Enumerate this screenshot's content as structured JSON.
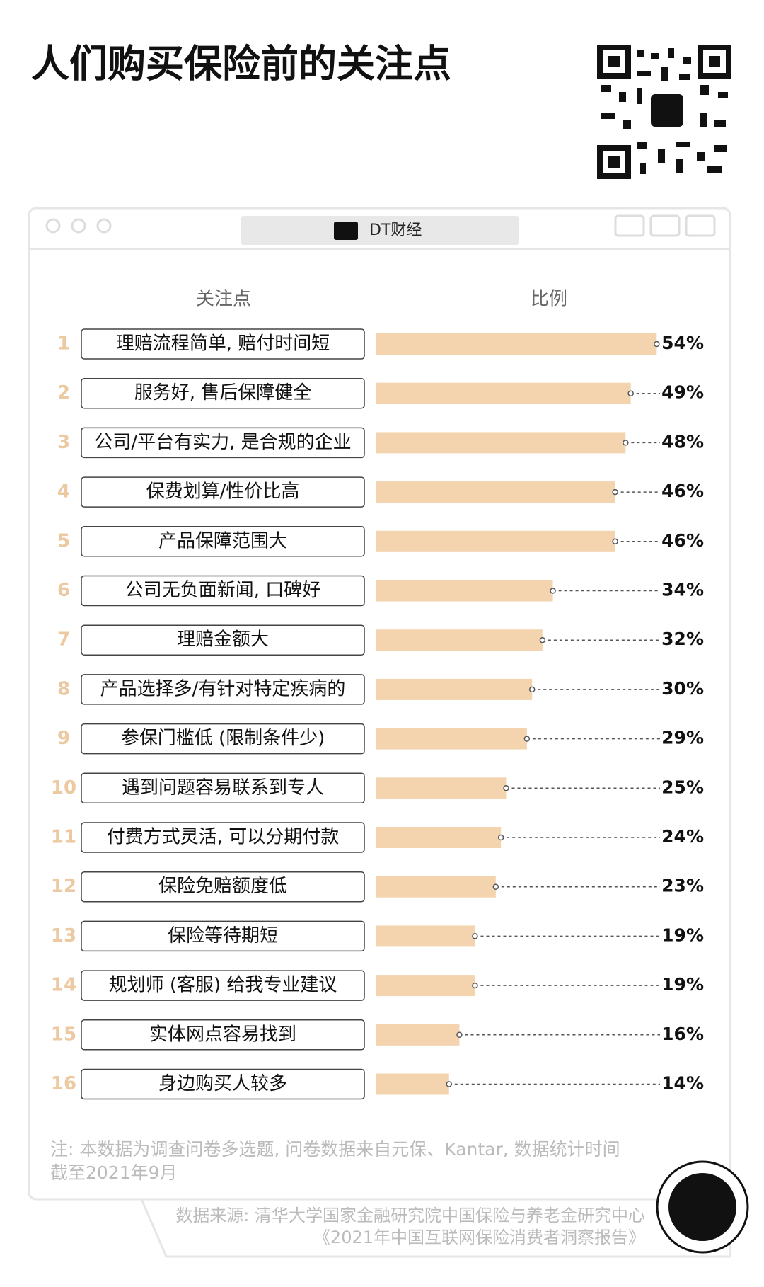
{
  "brand": "DT财经",
  "chart_data": {
    "type": "bar",
    "title": "人们购买保险前的关注点",
    "category_header": "关注点",
    "value_header": "比例",
    "ranks": [
      1,
      2,
      3,
      4,
      5,
      6,
      7,
      8,
      9,
      10,
      11,
      12,
      13,
      14,
      15,
      16
    ],
    "categories": [
      "理赔流程简单, 赔付时间短",
      "服务好, 售后保障健全",
      "公司/平台有实力, 是合规的企业",
      "保费划算/性价比高",
      "产品保障范围大",
      "公司无负面新闻, 口碑好",
      "理赔金额大",
      "产品选择多/有针对特定疾病的",
      "参保门槛低 (限制条件少)",
      "遇到问题容易联系到专人",
      "付费方式灵活, 可以分期付款",
      "保险免赔额度低",
      "保险等待期短",
      "规划师 (客服) 给我专业建议",
      "实体网点容易找到",
      "身边购买人较多"
    ],
    "values": [
      54,
      49,
      48,
      46,
      46,
      34,
      32,
      30,
      29,
      25,
      24,
      23,
      19,
      19,
      16,
      14
    ],
    "value_labels": [
      "54%",
      "49%",
      "48%",
      "46%",
      "46%",
      "34%",
      "32%",
      "30%",
      "29%",
      "25%",
      "24%",
      "23%",
      "19%",
      "19%",
      "16%",
      "14%"
    ],
    "color": "#f3d4ae"
  },
  "note": [
    "注: 本数据为调查问卷多选题, 问卷数据来自元保、Kantar, 数据统计时间",
    "截至2021年9月"
  ],
  "source": [
    "数据来源: 清华大学国家金融研究院中国保险与养老金研究中心",
    "《2021年中国互联网保险消费者洞察报告》"
  ]
}
